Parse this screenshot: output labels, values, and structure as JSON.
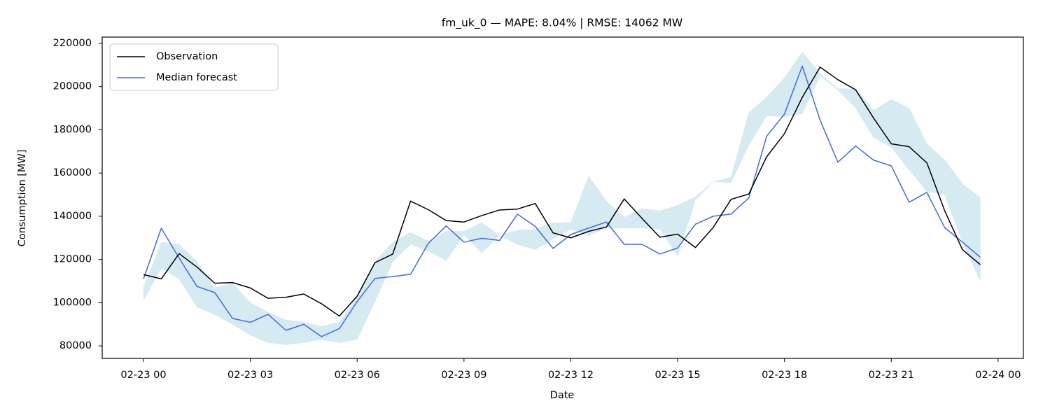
{
  "chart_data": {
    "type": "line",
    "title": "fm_uk_0 — MAPE: 8.04% | RMSE: 14062 MW",
    "xlabel": "Date",
    "ylabel": "Consumption [MW]",
    "x": [
      0,
      0.5,
      1,
      1.5,
      2,
      2.5,
      3,
      3.5,
      4,
      4.5,
      5,
      5.5,
      6,
      6.5,
      7,
      7.5,
      8,
      8.5,
      9,
      9.5,
      10,
      10.5,
      11,
      11.5,
      12,
      12.5,
      13,
      13.5,
      14,
      14.5,
      15,
      15.5,
      16,
      16.5,
      17,
      17.5,
      18,
      18.5,
      19,
      19.5,
      20,
      20.5,
      21,
      21.5,
      22,
      22.5,
      23,
      23.5
    ],
    "series": [
      {
        "name": "Observation",
        "color": "#000000",
        "values": [
          113000,
          111000,
          122700,
          116500,
          109000,
          109300,
          106800,
          102000,
          102500,
          104000,
          99500,
          93800,
          103000,
          118500,
          122500,
          147000,
          143000,
          138000,
          137300,
          140300,
          142900,
          143300,
          145900,
          132300,
          130000,
          133000,
          135000,
          148000,
          139000,
          130300,
          131700,
          125500,
          134800,
          147800,
          150300,
          167500,
          178200,
          195000,
          209000,
          203200,
          198500,
          185500,
          173500,
          172200,
          164700,
          142500,
          124500,
          117600
        ]
      },
      {
        "name": "Median forecast",
        "color": "#4169e1",
        "values": [
          111000,
          134500,
          120600,
          107500,
          104700,
          92700,
          90900,
          94600,
          87200,
          90000,
          84300,
          88000,
          100500,
          111200,
          112100,
          113100,
          127500,
          135500,
          128000,
          129800,
          128800,
          141000,
          135300,
          125100,
          131500,
          134500,
          137300,
          127000,
          127000,
          122500,
          125300,
          136300,
          140000,
          141000,
          148500,
          177000,
          187300,
          209500,
          184500,
          165000,
          172500,
          166000,
          163300,
          146500,
          151000,
          134700,
          128000,
          121000
        ]
      }
    ],
    "band": {
      "color": "#d6eaf1",
      "lower": [
        101000,
        116000,
        111000,
        98000,
        94500,
        90000,
        85000,
        81500,
        80600,
        81500,
        83000,
        81500,
        83000,
        100500,
        119000,
        127000,
        124000,
        119500,
        131500,
        123000,
        131000,
        127000,
        124500,
        129500,
        134000,
        131000,
        134500,
        134500,
        134500,
        134000,
        121500,
        147500,
        156000,
        155500,
        173000,
        186500,
        186000,
        187500,
        205000,
        198500,
        190000,
        176500,
        172000,
        161500,
        151500,
        150000,
        128000,
        110000
      ],
      "upper": [
        107000,
        128000,
        127000,
        119000,
        107000,
        109000,
        100000,
        95500,
        92000,
        91000,
        89000,
        91000,
        103000,
        119000,
        128000,
        132500,
        128500,
        133000,
        133000,
        137000,
        131000,
        133500,
        134000,
        137000,
        137000,
        158500,
        147000,
        139500,
        143500,
        142500,
        145000,
        149000,
        156000,
        158000,
        188000,
        195000,
        204000,
        216000,
        206000,
        199000,
        199000,
        189000,
        194000,
        190000,
        173500,
        166000,
        155000,
        148500
      ]
    },
    "xlim": [
      -1.16,
      24.71
    ],
    "ylim": [
      74200,
      222900
    ],
    "xticks": [
      {
        "value": 0,
        "label": "02-23 00"
      },
      {
        "value": 3,
        "label": "02-23 03"
      },
      {
        "value": 6,
        "label": "02-23 06"
      },
      {
        "value": 9,
        "label": "02-23 09"
      },
      {
        "value": 12,
        "label": "02-23 12"
      },
      {
        "value": 15,
        "label": "02-23 15"
      },
      {
        "value": 18,
        "label": "02-23 18"
      },
      {
        "value": 21,
        "label": "02-23 21"
      },
      {
        "value": 24,
        "label": "02-24 00"
      }
    ],
    "yticks": [
      80000,
      100000,
      120000,
      140000,
      160000,
      180000,
      200000,
      220000
    ],
    "legend": "upper left"
  }
}
